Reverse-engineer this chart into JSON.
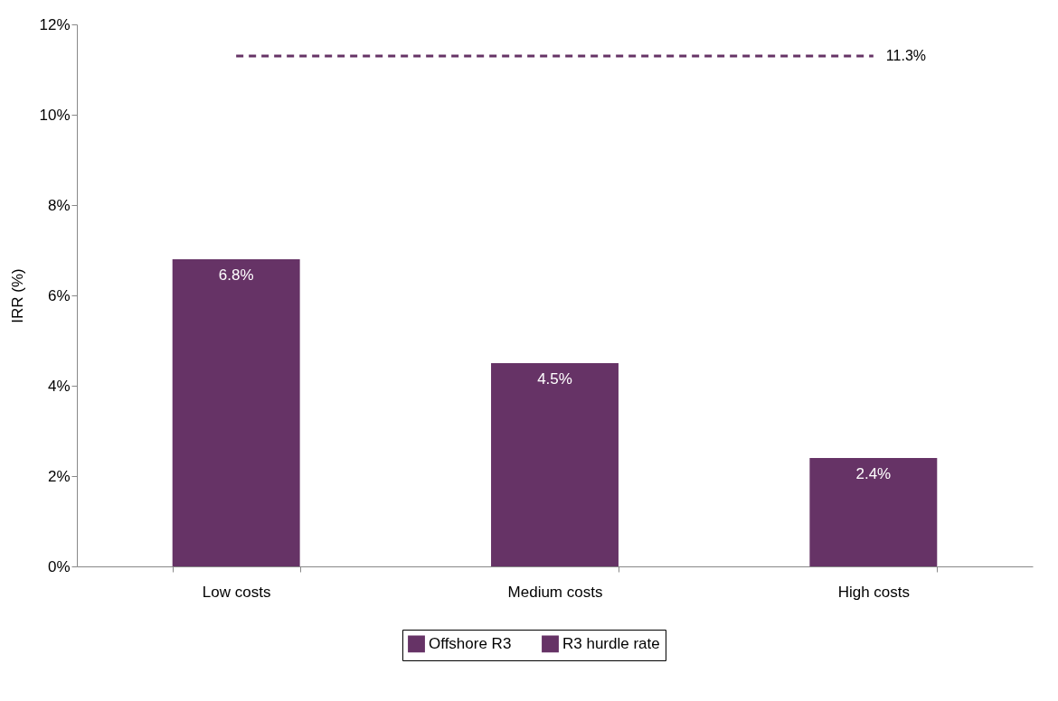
{
  "chart_data": {
    "type": "bar",
    "ylabel": "IRR (%)",
    "categories": [
      "Low costs",
      "Medium costs",
      "High costs"
    ],
    "series": [
      {
        "name": "Offshore R3",
        "color": "#663366",
        "values": [
          6.8,
          4.5,
          2.4
        ],
        "value_labels": [
          "6.8%",
          "4.5%",
          "2.4%"
        ]
      },
      {
        "name": "R3 hurdle rate",
        "type": "line",
        "color": "#663366",
        "line_style": "dashed",
        "marker": "none",
        "values": [
          11.3,
          11.3,
          11.3
        ],
        "value_labels": [
          null,
          null,
          "11.3%"
        ]
      }
    ],
    "ylim": [
      0,
      12
    ],
    "yticks": [
      {
        "value": 0,
        "label": "0%"
      },
      {
        "value": 2,
        "label": "2%"
      },
      {
        "value": 4,
        "label": "4%"
      },
      {
        "value": 6,
        "label": "6%"
      },
      {
        "value": 8,
        "label": "8%"
      },
      {
        "value": 10,
        "label": "10%"
      },
      {
        "value": 12,
        "label": "12%"
      }
    ],
    "grid": false,
    "legend": "bottom"
  }
}
